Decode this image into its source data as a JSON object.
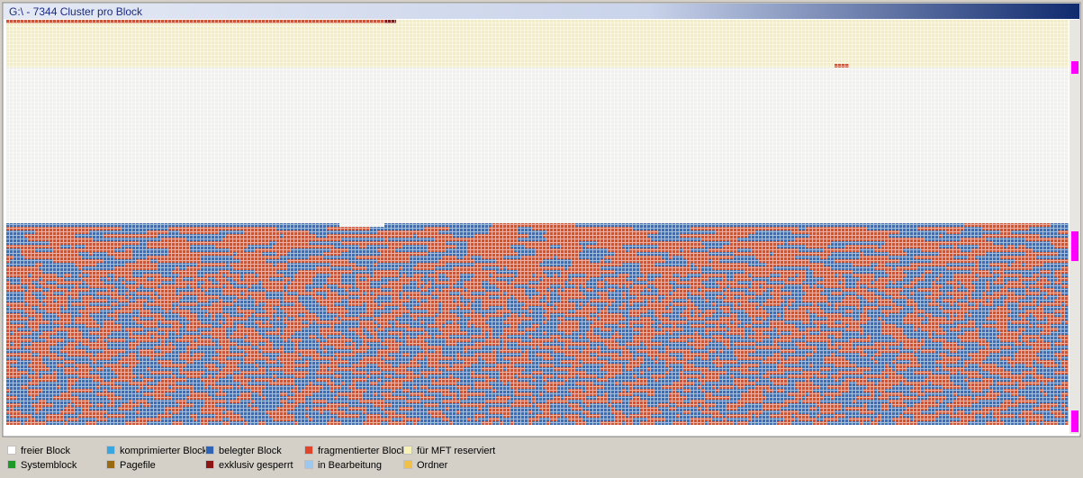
{
  "window": {
    "title": "G:\\ - 7344 Cluster pro Block"
  },
  "legend": [
    {
      "label": "freier Block",
      "color": "#ffffff"
    },
    {
      "label": "komprimierter Block",
      "color": "#3aa6e0"
    },
    {
      "label": "belegter Block",
      "color": "#2f64b4"
    },
    {
      "label": "fragmentierter Block",
      "color": "#e0442a"
    },
    {
      "label": "für MFT reserviert",
      "color": "#f6f2b8"
    },
    {
      "label": "Systemblock",
      "color": "#1f9a2a"
    },
    {
      "label": "Pagefile",
      "color": "#9a6a12"
    },
    {
      "label": "exklusiv gesperrt",
      "color": "#8c1616"
    },
    {
      "label": "in Bearbeitung",
      "color": "#9cc8f0"
    },
    {
      "label": "Ordner",
      "color": "#f0c048"
    }
  ]
}
